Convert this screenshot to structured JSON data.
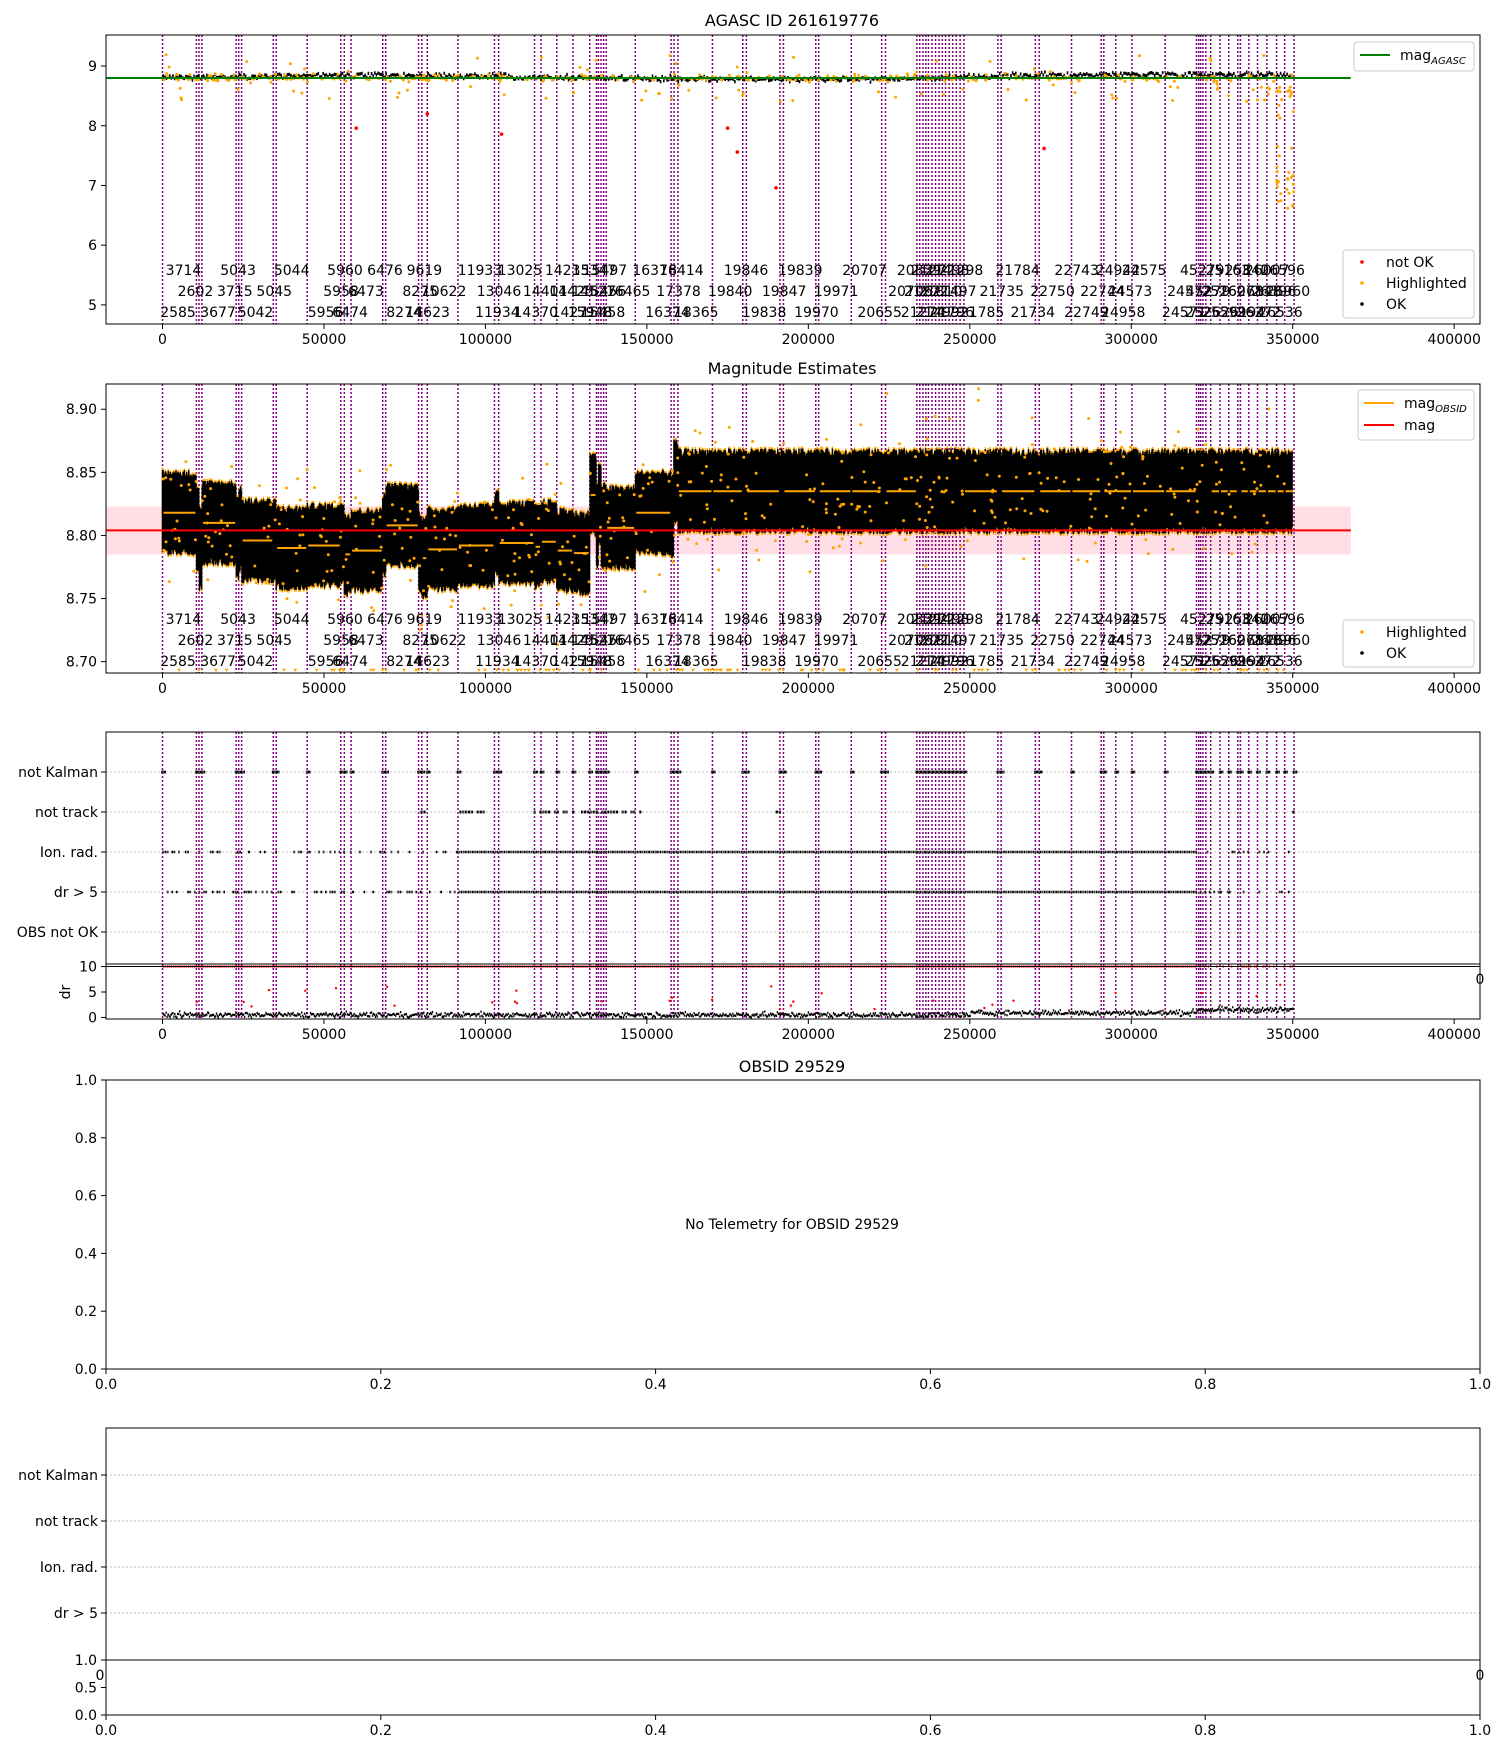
{
  "colors": {
    "obsid_line": "#800080",
    "ok": "#000000",
    "highlighted": "#ffa500",
    "not_ok": "#ff0000",
    "agasc_line": "#008000",
    "mag_line": "#ff0000",
    "mag_obsid_line": "#ffa500",
    "band": "#ffc0cb",
    "grid": "#b0b0b0"
  },
  "chart_data": [
    {
      "type": "scatter",
      "title": "AGASC ID 261619776",
      "xlim": [
        -17500,
        408000
      ],
      "ylim": [
        4.68,
        9.52
      ],
      "xticks": [
        "0",
        "50000",
        "100000",
        "150000",
        "200000",
        "250000",
        "300000",
        "350000",
        "400000"
      ],
      "xtick_values": [
        0,
        50000,
        100000,
        150000,
        200000,
        250000,
        300000,
        350000,
        400000
      ],
      "yticks": [
        "5",
        "6",
        "7",
        "8",
        "9"
      ],
      "ytick_values": [
        5,
        6,
        7,
        8,
        9
      ],
      "mag_agasc": 8.8,
      "ok_band": [
        8.73,
        8.9
      ],
      "legend_upper": [
        {
          "name": "mag",
          "sub": "AGASC",
          "color": "#008000",
          "kind": "line"
        }
      ],
      "legend_lower": [
        {
          "name": "not OK",
          "color": "#ff0000",
          "kind": "dot"
        },
        {
          "name": "Highlighted",
          "color": "#ffa500",
          "kind": "dot"
        },
        {
          "name": "OK",
          "color": "#000000",
          "kind": "dot"
        }
      ]
    },
    {
      "type": "scatter",
      "title": "Magnitude Estimates",
      "xlim": [
        -17500,
        408000
      ],
      "ylim": [
        8.691,
        8.92
      ],
      "xticks": [
        "0",
        "50000",
        "100000",
        "150000",
        "200000",
        "250000",
        "300000",
        "350000",
        "400000"
      ],
      "xtick_values": [
        0,
        50000,
        100000,
        150000,
        200000,
        250000,
        300000,
        350000,
        400000
      ],
      "yticks": [
        "8.70",
        "8.75",
        "8.80",
        "8.85",
        "8.90"
      ],
      "ytick_values": [
        8.7,
        8.75,
        8.8,
        8.85,
        8.9
      ],
      "mag": 8.804,
      "mag_band": [
        8.785,
        8.823
      ],
      "obsid_means": [
        8.818,
        8.806,
        8.79,
        8.81,
        8.798,
        8.805,
        8.796,
        8.795,
        8.79,
        8.792,
        8.794,
        8.785,
        8.788,
        8.8,
        8.808,
        8.786,
        8.782,
        8.789,
        8.792,
        8.802,
        8.794,
        8.791,
        8.795,
        8.788,
        8.786,
        8.832,
        8.808,
        8.825,
        8.805,
        8.808,
        8.806,
        8.818,
        8.815,
        8.842,
        8.835
      ],
      "legend_upper": [
        {
          "name": "mag",
          "sub": "OBSID",
          "color": "#ffa500",
          "kind": "line"
        },
        {
          "name": "mag",
          "sub": "",
          "color": "#ff0000",
          "kind": "line"
        }
      ],
      "legend_lower": [
        {
          "name": "Highlighted",
          "color": "#ffa500",
          "kind": "dot"
        },
        {
          "name": "OK",
          "color": "#000000",
          "kind": "dot"
        }
      ]
    },
    {
      "type": "scatter",
      "title": "",
      "categories": [
        "not Kalman",
        "not track",
        "Ion. rad.",
        "dr > 5",
        "OBS not OK"
      ],
      "xlim": [
        -17500,
        408000
      ],
      "dr_ylim": [
        -0.3,
        10.5
      ],
      "dr_yticks": [
        "0",
        "5",
        "10"
      ],
      "dr_ytick_values": [
        0,
        5,
        10
      ],
      "dr_ylabel": "dr",
      "xticks": [
        "0",
        "50000",
        "100000",
        "150000",
        "200000",
        "250000",
        "300000",
        "350000",
        "400000"
      ],
      "xtick_values": [
        0,
        50000,
        100000,
        150000,
        200000,
        250000,
        300000,
        350000,
        400000
      ]
    },
    {
      "type": "line",
      "title": "OBSID 29529",
      "message": "No Telemetry for OBSID 29529",
      "xlim": [
        0,
        1
      ],
      "ylim": [
        0,
        1
      ],
      "xticks": [
        "0.0",
        "0.2",
        "0.4",
        "0.6",
        "0.8",
        "1.0"
      ],
      "xtick_values": [
        0,
        0.2,
        0.4,
        0.6,
        0.8,
        1.0
      ],
      "yticks": [
        "0.0",
        "0.2",
        "0.4",
        "0.6",
        "0.8",
        "1.0"
      ],
      "ytick_values": [
        0,
        0.2,
        0.4,
        0.6,
        0.8,
        1.0
      ]
    },
    {
      "type": "scatter",
      "title": "",
      "categories": [
        "not Kalman",
        "not track",
        "Ion. rad.",
        "dr > 5"
      ],
      "xticks": [
        "0.0",
        "0.2",
        "0.4",
        "0.6",
        "0.8",
        "1.0"
      ],
      "xtick_values": [
        0,
        0.2,
        0.4,
        0.6,
        0.8,
        1.0
      ],
      "small_yticks": [
        "0.0",
        "0.5",
        "1.0"
      ],
      "small_ytick_values": [
        0,
        0.5,
        1.0
      ],
      "upper_x_edge_ticks": [
        "0",
        "0"
      ]
    }
  ],
  "obsid_positions": [
    0,
    10500,
    11300,
    12200,
    22800,
    23600,
    24500,
    34300,
    35200,
    44800,
    55200,
    56300,
    58400,
    68200,
    69100,
    79300,
    80300,
    82000,
    91500,
    102800,
    104100,
    115200,
    117200,
    122100,
    127100,
    132300,
    134400,
    135000,
    135800,
    136600,
    137400,
    146400,
    157500,
    158400,
    159600,
    170300,
    179700,
    180800,
    191200,
    192300,
    202300,
    203200,
    213300,
    222700,
    223900,
    233600,
    234500,
    235500,
    236400,
    237200,
    238300,
    239400,
    240500,
    241500,
    242500,
    243600,
    244700,
    245800,
    247000,
    248200,
    258700,
    259700,
    270300,
    271500,
    281500,
    290700,
    291500,
    295200,
    300200,
    310500,
    320200,
    320900,
    321500,
    322200,
    323100,
    324600,
    327500,
    330200,
    333000,
    333800,
    336400,
    339100,
    342000,
    345000,
    347500,
    350400
  ],
  "obsid_labels": [
    {
      "x": 6500,
      "row": 0,
      "t": "3714"
    },
    {
      "x": 23400,
      "row": 0,
      "t": "5043"
    },
    {
      "x": 40000,
      "row": 0,
      "t": "5044"
    },
    {
      "x": 56500,
      "row": 0,
      "t": "5960"
    },
    {
      "x": 68900,
      "row": 0,
      "t": "6476"
    },
    {
      "x": 81100,
      "row": 0,
      "t": "9619"
    },
    {
      "x": 98300,
      "row": 0,
      "t": "11933"
    },
    {
      "x": 110700,
      "row": 0,
      "t": "13025"
    },
    {
      "x": 125300,
      "row": 0,
      "t": "14235"
    },
    {
      "x": 133600,
      "row": 0,
      "t": "15347"
    },
    {
      "x": 137000,
      "row": 0,
      "t": "15497"
    },
    {
      "x": 152400,
      "row": 0,
      "t": "16376"
    },
    {
      "x": 160700,
      "row": 0,
      "t": "18414"
    },
    {
      "x": 180700,
      "row": 0,
      "t": "19846"
    },
    {
      "x": 197500,
      "row": 0,
      "t": "19839"
    },
    {
      "x": 217400,
      "row": 0,
      "t": "20707"
    },
    {
      "x": 234300,
      "row": 0,
      "t": "20839"
    },
    {
      "x": 238600,
      "row": 0,
      "t": "21272"
    },
    {
      "x": 243000,
      "row": 0,
      "t": "21498"
    },
    {
      "x": 247300,
      "row": 0,
      "t": "21298"
    },
    {
      "x": 264800,
      "row": 0,
      "t": "21784"
    },
    {
      "x": 283100,
      "row": 0,
      "t": "22743"
    },
    {
      "x": 295900,
      "row": 0,
      "t": "24942"
    },
    {
      "x": 304000,
      "row": 0,
      "t": "24575"
    },
    {
      "x": 322000,
      "row": 0,
      "t": "45279"
    },
    {
      "x": 329900,
      "row": 0,
      "t": "25163"
    },
    {
      "x": 335800,
      "row": 0,
      "t": "25840"
    },
    {
      "x": 342100,
      "row": 0,
      "t": "26007"
    },
    {
      "x": 346900,
      "row": 0,
      "t": "26596"
    },
    {
      "x": 10200,
      "row": 1,
      "t": "2602"
    },
    {
      "x": 22400,
      "row": 1,
      "t": "3715"
    },
    {
      "x": 34600,
      "row": 1,
      "t": "5045"
    },
    {
      "x": 55300,
      "row": 1,
      "t": "5958"
    },
    {
      "x": 63000,
      "row": 1,
      "t": "6473"
    },
    {
      "x": 79800,
      "row": 1,
      "t": "8275"
    },
    {
      "x": 87200,
      "row": 1,
      "t": "10622"
    },
    {
      "x": 104200,
      "row": 1,
      "t": "13046"
    },
    {
      "x": 118500,
      "row": 1,
      "t": "14401"
    },
    {
      "x": 126700,
      "row": 1,
      "t": "14425"
    },
    {
      "x": 133500,
      "row": 1,
      "t": "14527"
    },
    {
      "x": 136700,
      "row": 1,
      "t": "15456"
    },
    {
      "x": 144200,
      "row": 1,
      "t": "16465"
    },
    {
      "x": 159800,
      "row": 1,
      "t": "17378"
    },
    {
      "x": 175800,
      "row": 1,
      "t": "19840"
    },
    {
      "x": 192500,
      "row": 1,
      "t": "19847"
    },
    {
      "x": 208600,
      "row": 1,
      "t": "19971"
    },
    {
      "x": 231600,
      "row": 1,
      "t": "20706"
    },
    {
      "x": 236500,
      "row": 1,
      "t": "21272"
    },
    {
      "x": 240800,
      "row": 1,
      "t": "21810"
    },
    {
      "x": 245200,
      "row": 1,
      "t": "21497"
    },
    {
      "x": 259900,
      "row": 1,
      "t": "21735"
    },
    {
      "x": 275600,
      "row": 1,
      "t": "22750"
    },
    {
      "x": 291100,
      "row": 1,
      "t": "22744"
    },
    {
      "x": 299600,
      "row": 1,
      "t": "24573"
    },
    {
      "x": 318000,
      "row": 1,
      "t": "24572"
    },
    {
      "x": 323800,
      "row": 1,
      "t": "45279"
    },
    {
      "x": 328600,
      "row": 1,
      "t": "25162"
    },
    {
      "x": 334100,
      "row": 1,
      "t": "26078"
    },
    {
      "x": 339700,
      "row": 1,
      "t": "26148"
    },
    {
      "x": 344200,
      "row": 1,
      "t": "26396"
    },
    {
      "x": 348500,
      "row": 1,
      "t": "26960"
    },
    {
      "x": 4800,
      "row": 2,
      "t": "2585"
    },
    {
      "x": 17200,
      "row": 2,
      "t": "3677"
    },
    {
      "x": 28800,
      "row": 2,
      "t": "5042"
    },
    {
      "x": 50500,
      "row": 2,
      "t": "5956"
    },
    {
      "x": 58100,
      "row": 2,
      "t": "6474"
    },
    {
      "x": 74800,
      "row": 2,
      "t": "8274"
    },
    {
      "x": 82100,
      "row": 2,
      "t": "14623"
    },
    {
      "x": 103700,
      "row": 2,
      "t": "11934"
    },
    {
      "x": 115600,
      "row": 2,
      "t": "14370"
    },
    {
      "x": 127400,
      "row": 2,
      "t": "14271"
    },
    {
      "x": 132400,
      "row": 2,
      "t": "15948"
    },
    {
      "x": 136400,
      "row": 2,
      "t": "15458"
    },
    {
      "x": 156400,
      "row": 2,
      "t": "16374"
    },
    {
      "x": 165300,
      "row": 2,
      "t": "18365"
    },
    {
      "x": 186300,
      "row": 2,
      "t": "19838"
    },
    {
      "x": 202500,
      "row": 2,
      "t": "19970"
    },
    {
      "x": 222100,
      "row": 2,
      "t": "20655"
    },
    {
      "x": 235500,
      "row": 2,
      "t": "21274"
    },
    {
      "x": 240000,
      "row": 2,
      "t": "21499"
    },
    {
      "x": 244400,
      "row": 2,
      "t": "21796"
    },
    {
      "x": 253800,
      "row": 2,
      "t": "21785"
    },
    {
      "x": 269500,
      "row": 2,
      "t": "21734"
    },
    {
      "x": 286100,
      "row": 2,
      "t": "22749"
    },
    {
      "x": 297500,
      "row": 2,
      "t": "24958"
    },
    {
      "x": 316400,
      "row": 2,
      "t": "24571"
    },
    {
      "x": 323600,
      "row": 2,
      "t": "25262"
    },
    {
      "x": 328800,
      "row": 2,
      "t": "25599"
    },
    {
      "x": 334600,
      "row": 2,
      "t": "26194"
    },
    {
      "x": 339500,
      "row": 2,
      "t": "26272"
    },
    {
      "x": 346200,
      "row": 2,
      "t": "26536"
    }
  ]
}
